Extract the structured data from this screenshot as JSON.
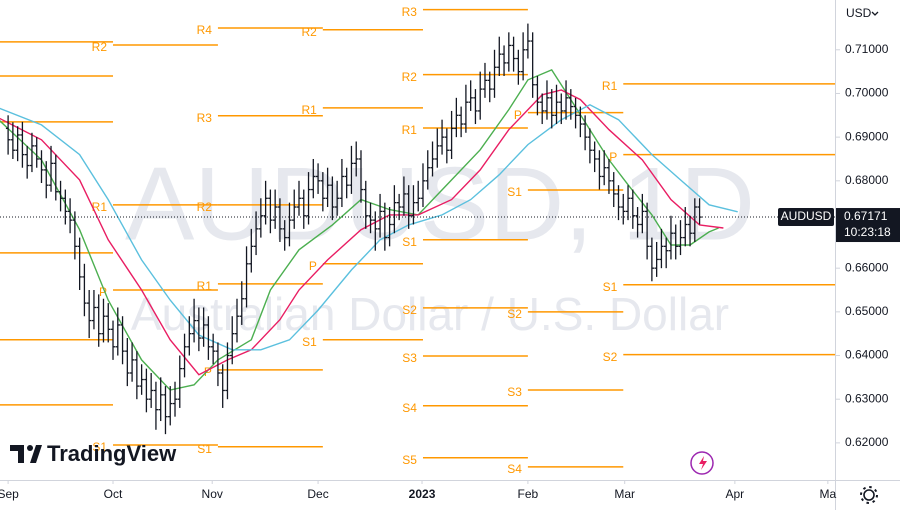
{
  "chart_data": {
    "type": "ohlc",
    "symbol": "AUDUSD",
    "watermark_title": "AUDUSD, 1D",
    "watermark_subtitle": "Australian Dollar / U.S. Dollar",
    "currency": "USD",
    "brand": "TradingView",
    "last_price": 0.67171,
    "countdown": "10:23:18",
    "bar_color": "#131722",
    "pivot_color": "#ff9800",
    "xlim": [
      -1.7,
      173.4
    ],
    "xticks": [
      {
        "value": 0,
        "label": "Sep"
      },
      {
        "value": 22,
        "label": "Oct"
      },
      {
        "value": 42.8,
        "label": "Nov"
      },
      {
        "value": 65,
        "label": "Dec"
      },
      {
        "value": 86.8,
        "label": "2023"
      },
      {
        "value": 109,
        "label": "Feb"
      },
      {
        "value": 129.3,
        "label": "Mar"
      },
      {
        "value": 152.4,
        "label": "Apr"
      },
      {
        "value": 171.9,
        "label": "Ma"
      }
    ],
    "ylim": [
      0.6115,
      0.7214
    ],
    "yticks": [
      {
        "value": 0.71,
        "label": "0.71000"
      },
      {
        "value": 0.7,
        "label": "0.70000"
      },
      {
        "value": 0.69,
        "label": "0.69000"
      },
      {
        "value": 0.68,
        "label": "0.68000"
      },
      {
        "value": 0.66,
        "label": "0.66000"
      },
      {
        "value": 0.65,
        "label": "0.65000"
      },
      {
        "value": 0.64,
        "label": "0.64000"
      },
      {
        "value": 0.63,
        "label": "0.63000"
      },
      {
        "value": 0.62,
        "label": "0.62000"
      }
    ],
    "ohlc": [
      [
        0.692,
        0.695,
        0.686,
        0.6894
      ],
      [
        0.6894,
        0.6934,
        0.685,
        0.687
      ],
      [
        0.687,
        0.6925,
        0.6845,
        0.6905
      ],
      [
        0.6905,
        0.6935,
        0.683,
        0.686
      ],
      [
        0.686,
        0.688,
        0.6805,
        0.6835
      ],
      [
        0.6835,
        0.691,
        0.682,
        0.688
      ],
      [
        0.688,
        0.69,
        0.683,
        0.685
      ],
      [
        0.685,
        0.687,
        0.6795,
        0.6825
      ],
      [
        0.6825,
        0.6845,
        0.676,
        0.679
      ],
      [
        0.679,
        0.688,
        0.6775,
        0.684
      ],
      [
        0.684,
        0.686,
        0.6755,
        0.6775
      ],
      [
        0.6775,
        0.68,
        0.673,
        0.676
      ],
      [
        0.676,
        0.678,
        0.67,
        0.673
      ],
      [
        0.673,
        0.676,
        0.668,
        0.671
      ],
      [
        0.671,
        0.673,
        0.662,
        0.665
      ],
      [
        0.665,
        0.667,
        0.655,
        0.658
      ],
      [
        0.658,
        0.661,
        0.649,
        0.652
      ],
      [
        0.652,
        0.655,
        0.644,
        0.648
      ],
      [
        0.648,
        0.655,
        0.646,
        0.651
      ],
      [
        0.651,
        0.654,
        0.642,
        0.645
      ],
      [
        0.645,
        0.653,
        0.643,
        0.649
      ],
      [
        0.649,
        0.652,
        0.643,
        0.646
      ],
      [
        0.646,
        0.648,
        0.639,
        0.642
      ],
      [
        0.642,
        0.651,
        0.64,
        0.647
      ],
      [
        0.647,
        0.649,
        0.638,
        0.641
      ],
      [
        0.641,
        0.644,
        0.633,
        0.636
      ],
      [
        0.636,
        0.643,
        0.634,
        0.639
      ],
      [
        0.639,
        0.641,
        0.63,
        0.633
      ],
      [
        0.633,
        0.638,
        0.631,
        0.6345
      ],
      [
        0.6345,
        0.637,
        0.627,
        0.63
      ],
      [
        0.63,
        0.636,
        0.628,
        0.632
      ],
      [
        0.632,
        0.634,
        0.623,
        0.6276
      ],
      [
        0.6276,
        0.635,
        0.625,
        0.631
      ],
      [
        0.631,
        0.633,
        0.622,
        0.626
      ],
      [
        0.626,
        0.633,
        0.624,
        0.629
      ],
      [
        0.629,
        0.634,
        0.626,
        0.63
      ],
      [
        0.63,
        0.64,
        0.628,
        0.637
      ],
      [
        0.637,
        0.645,
        0.635,
        0.642
      ],
      [
        0.642,
        0.649,
        0.64,
        0.645
      ],
      [
        0.645,
        0.653,
        0.643,
        0.648
      ],
      [
        0.648,
        0.651,
        0.641,
        0.644
      ],
      [
        0.644,
        0.651,
        0.642,
        0.647
      ],
      [
        0.647,
        0.649,
        0.639,
        0.642
      ],
      [
        0.642,
        0.645,
        0.638,
        0.641
      ],
      [
        0.641,
        0.643,
        0.633,
        0.636
      ],
      [
        0.636,
        0.638,
        0.628,
        0.632
      ],
      [
        0.632,
        0.643,
        0.63,
        0.64
      ],
      [
        0.64,
        0.649,
        0.638,
        0.645
      ],
      [
        0.645,
        0.653,
        0.643,
        0.649
      ],
      [
        0.649,
        0.657,
        0.647,
        0.653
      ],
      [
        0.653,
        0.665,
        0.651,
        0.661
      ],
      [
        0.661,
        0.669,
        0.659,
        0.665
      ],
      [
        0.665,
        0.673,
        0.663,
        0.669
      ],
      [
        0.669,
        0.676,
        0.667,
        0.672
      ],
      [
        0.672,
        0.68,
        0.67,
        0.676
      ],
      [
        0.676,
        0.678,
        0.668,
        0.671
      ],
      [
        0.671,
        0.678,
        0.669,
        0.674
      ],
      [
        0.674,
        0.676,
        0.666,
        0.669
      ],
      [
        0.669,
        0.671,
        0.664,
        0.667
      ],
      [
        0.667,
        0.675,
        0.665,
        0.671
      ],
      [
        0.671,
        0.678,
        0.669,
        0.674
      ],
      [
        0.674,
        0.68,
        0.672,
        0.676
      ],
      [
        0.676,
        0.678,
        0.669,
        0.672
      ],
      [
        0.672,
        0.682,
        0.67,
        0.678
      ],
      [
        0.678,
        0.685,
        0.676,
        0.681
      ],
      [
        0.681,
        0.684,
        0.677,
        0.68
      ],
      [
        0.68,
        0.682,
        0.673,
        0.676
      ],
      [
        0.676,
        0.683,
        0.674,
        0.679
      ],
      [
        0.679,
        0.681,
        0.671,
        0.674
      ],
      [
        0.674,
        0.68,
        0.672,
        0.676
      ],
      [
        0.676,
        0.685,
        0.674,
        0.681
      ],
      [
        0.681,
        0.683,
        0.676,
        0.679
      ],
      [
        0.679,
        0.688,
        0.677,
        0.684
      ],
      [
        0.684,
        0.689,
        0.681,
        0.685
      ],
      [
        0.685,
        0.687,
        0.675,
        0.678
      ],
      [
        0.678,
        0.68,
        0.669,
        0.672
      ],
      [
        0.672,
        0.675,
        0.668,
        0.671
      ],
      [
        0.671,
        0.673,
        0.664,
        0.669
      ],
      [
        0.669,
        0.677,
        0.667,
        0.673
      ],
      [
        0.673,
        0.675,
        0.664,
        0.667
      ],
      [
        0.667,
        0.674,
        0.665,
        0.67
      ],
      [
        0.67,
        0.679,
        0.668,
        0.675
      ],
      [
        0.675,
        0.677,
        0.671,
        0.674
      ],
      [
        0.674,
        0.681,
        0.672,
        0.677
      ],
      [
        0.677,
        0.679,
        0.669,
        0.672
      ],
      [
        0.672,
        0.679,
        0.67,
        0.675
      ],
      [
        0.675,
        0.68,
        0.673,
        0.676
      ],
      [
        0.676,
        0.684,
        0.674,
        0.68
      ],
      [
        0.68,
        0.687,
        0.678,
        0.683
      ],
      [
        0.683,
        0.689,
        0.681,
        0.685
      ],
      [
        0.685,
        0.692,
        0.683,
        0.688
      ],
      [
        0.688,
        0.694,
        0.686,
        0.69
      ],
      [
        0.69,
        0.692,
        0.684,
        0.687
      ],
      [
        0.687,
        0.696,
        0.685,
        0.692
      ],
      [
        0.692,
        0.699,
        0.69,
        0.695
      ],
      [
        0.695,
        0.697,
        0.69,
        0.693
      ],
      [
        0.693,
        0.702,
        0.691,
        0.698
      ],
      [
        0.698,
        0.703,
        0.696,
        0.699
      ],
      [
        0.699,
        0.701,
        0.693,
        0.696
      ],
      [
        0.696,
        0.705,
        0.694,
        0.701
      ],
      [
        0.701,
        0.707,
        0.699,
        0.703
      ],
      [
        0.703,
        0.705,
        0.698,
        0.701
      ],
      [
        0.701,
        0.71,
        0.699,
        0.706
      ],
      [
        0.706,
        0.713,
        0.704,
        0.709
      ],
      [
        0.709,
        0.711,
        0.704,
        0.707
      ],
      [
        0.707,
        0.714,
        0.705,
        0.711
      ],
      [
        0.711,
        0.713,
        0.705,
        0.708
      ],
      [
        0.708,
        0.71,
        0.702,
        0.705
      ],
      [
        0.705,
        0.714,
        0.703,
        0.71
      ],
      [
        0.71,
        0.716,
        0.708,
        0.712
      ],
      [
        0.712,
        0.714,
        0.699,
        0.702
      ],
      [
        0.702,
        0.704,
        0.695,
        0.698
      ],
      [
        0.698,
        0.7,
        0.693,
        0.696
      ],
      [
        0.696,
        0.703,
        0.694,
        0.699
      ],
      [
        0.699,
        0.701,
        0.692,
        0.695
      ],
      [
        0.695,
        0.702,
        0.693,
        0.698
      ],
      [
        0.698,
        0.7,
        0.693,
        0.696
      ],
      [
        0.696,
        0.703,
        0.694,
        0.699
      ],
      [
        0.699,
        0.701,
        0.694,
        0.697
      ],
      [
        0.697,
        0.699,
        0.692,
        0.695
      ],
      [
        0.695,
        0.697,
        0.69,
        0.693
      ],
      [
        0.693,
        0.695,
        0.687,
        0.69
      ],
      [
        0.69,
        0.692,
        0.684,
        0.687
      ],
      [
        0.687,
        0.689,
        0.682,
        0.685
      ],
      [
        0.685,
        0.687,
        0.678,
        0.681
      ],
      [
        0.681,
        0.687,
        0.679,
        0.683
      ],
      [
        0.683,
        0.685,
        0.677,
        0.68
      ],
      [
        0.68,
        0.682,
        0.674,
        0.677
      ],
      [
        0.677,
        0.679,
        0.671,
        0.674
      ],
      [
        0.674,
        0.677,
        0.67,
        0.673
      ],
      [
        0.673,
        0.679,
        0.671,
        0.676
      ],
      [
        0.676,
        0.678,
        0.669,
        0.672
      ],
      [
        0.672,
        0.674,
        0.667,
        0.67
      ],
      [
        0.67,
        0.677,
        0.668,
        0.673
      ],
      [
        0.673,
        0.675,
        0.662,
        0.665
      ],
      [
        0.665,
        0.667,
        0.657,
        0.66
      ],
      [
        0.66,
        0.666,
        0.658,
        0.662
      ],
      [
        0.662,
        0.669,
        0.66,
        0.665
      ],
      [
        0.665,
        0.667,
        0.66,
        0.664
      ],
      [
        0.664,
        0.672,
        0.662,
        0.668
      ],
      [
        0.668,
        0.67,
        0.662,
        0.665
      ],
      [
        0.665,
        0.671,
        0.663,
        0.667
      ],
      [
        0.667,
        0.674,
        0.665,
        0.67
      ],
      [
        0.67,
        0.672,
        0.665,
        0.668
      ],
      [
        0.668,
        0.676,
        0.666,
        0.674
      ],
      [
        0.674,
        0.676,
        0.67,
        0.6717
      ]
    ],
    "moving_averages": [
      {
        "color": "#4caf50",
        "x": [
          -2,
          7,
          15,
          21,
          28,
          34,
          39,
          44,
          51,
          55,
          61,
          68,
          74,
          80,
          86,
          93,
          99,
          105,
          109,
          114,
          118,
          122,
          126,
          130,
          135,
          139,
          143,
          147,
          149
        ],
        "values": [
          0.694,
          0.6848,
          0.6688,
          0.6527,
          0.639,
          0.6321,
          0.6333,
          0.639,
          0.6436,
          0.655,
          0.6642,
          0.6699,
          0.6757,
          0.6734,
          0.6722,
          0.6802,
          0.6871,
          0.6963,
          0.7031,
          0.7054,
          0.6986,
          0.6917,
          0.6848,
          0.6791,
          0.6722,
          0.6653,
          0.6653,
          0.6683,
          0.6692
        ]
      },
      {
        "color": "#e91e63",
        "x": [
          -2,
          7,
          15,
          21,
          28,
          34,
          40,
          46,
          51,
          57,
          61,
          67,
          74,
          80,
          86,
          93,
          99,
          105,
          112,
          116,
          120,
          126,
          133,
          139,
          145,
          150
        ],
        "values": [
          0.6944,
          0.6894,
          0.6802,
          0.6665,
          0.655,
          0.6436,
          0.6356,
          0.639,
          0.6413,
          0.6482,
          0.655,
          0.6619,
          0.6688,
          0.6722,
          0.6722,
          0.6757,
          0.6825,
          0.6917,
          0.6997,
          0.7008,
          0.6986,
          0.6917,
          0.6848,
          0.6757,
          0.6699,
          0.6692
        ]
      },
      {
        "color": "#5bc0de",
        "x": [
          -2,
          7,
          15,
          21,
          28,
          34,
          40,
          47,
          53,
          59,
          65,
          72,
          78,
          84,
          91,
          97,
          103,
          109,
          116,
          122,
          128,
          135,
          141,
          147,
          153
        ],
        "values": [
          0.6967,
          0.6928,
          0.686,
          0.6757,
          0.6619,
          0.6527,
          0.6447,
          0.6413,
          0.6413,
          0.6436,
          0.6504,
          0.6596,
          0.6665,
          0.6699,
          0.6722,
          0.6757,
          0.6814,
          0.6883,
          0.694,
          0.6974,
          0.694,
          0.686,
          0.6802,
          0.6745,
          0.6729
        ]
      }
    ],
    "pivots": [
      {
        "x": [
          -2,
          22
        ],
        "levels": [
          {
            "value": 0.7118
          },
          {
            "value": 0.704
          },
          {
            "value": 0.6935
          },
          {
            "value": 0.6635
          },
          {
            "value": 0.6436
          },
          {
            "value": 0.6287
          }
        ]
      },
      {
        "x": [
          22,
          44
        ],
        "levels": [
          {
            "label": "R2",
            "value": 0.7111
          },
          {
            "label": "R1",
            "value": 0.6745
          },
          {
            "label": "P",
            "value": 0.655
          },
          {
            "label": "S1",
            "value": 0.6195
          }
        ]
      },
      {
        "x": [
          44,
          66
        ],
        "levels": [
          {
            "label": "R4",
            "value": 0.715
          },
          {
            "label": "R3",
            "value": 0.6949
          },
          {
            "label": "R2",
            "value": 0.6745
          },
          {
            "label": "R1",
            "value": 0.6564
          },
          {
            "label": "P",
            "value": 0.6367
          },
          {
            "label": "S1",
            "value": 0.6191
          }
        ]
      },
      {
        "x": [
          66,
          87
        ],
        "levels": [
          {
            "label": "R2",
            "value": 0.7146
          },
          {
            "label": "R1",
            "value": 0.6967
          },
          {
            "label": "P",
            "value": 0.661
          },
          {
            "label": "S1",
            "value": 0.6436
          }
        ]
      },
      {
        "x": [
          87,
          109
        ],
        "levels": [
          {
            "label": "R3",
            "value": 0.7192
          },
          {
            "label": "R2",
            "value": 0.7043
          },
          {
            "label": "R1",
            "value": 0.6921
          },
          {
            "label": "S1",
            "value": 0.6665
          },
          {
            "label": "S2",
            "value": 0.6509
          },
          {
            "label": "S3",
            "value": 0.6399
          },
          {
            "label": "S4",
            "value": 0.6285
          },
          {
            "label": "S5",
            "value": 0.6166
          }
        ]
      },
      {
        "x": [
          109,
          129
        ],
        "levels": [
          {
            "label": "P",
            "value": 0.6956
          },
          {
            "label": "S1",
            "value": 0.6779
          },
          {
            "label": "S2",
            "value": 0.65
          },
          {
            "label": "S3",
            "value": 0.6321
          },
          {
            "label": "S4",
            "value": 0.6145
          }
        ]
      },
      {
        "x": [
          129,
          173.4
        ],
        "levels": [
          {
            "label": "R1",
            "value": 0.7022
          },
          {
            "label": "P",
            "value": 0.686
          },
          {
            "label": "S1",
            "value": 0.6562
          },
          {
            "label": "S2",
            "value": 0.6402
          }
        ]
      }
    ]
  }
}
